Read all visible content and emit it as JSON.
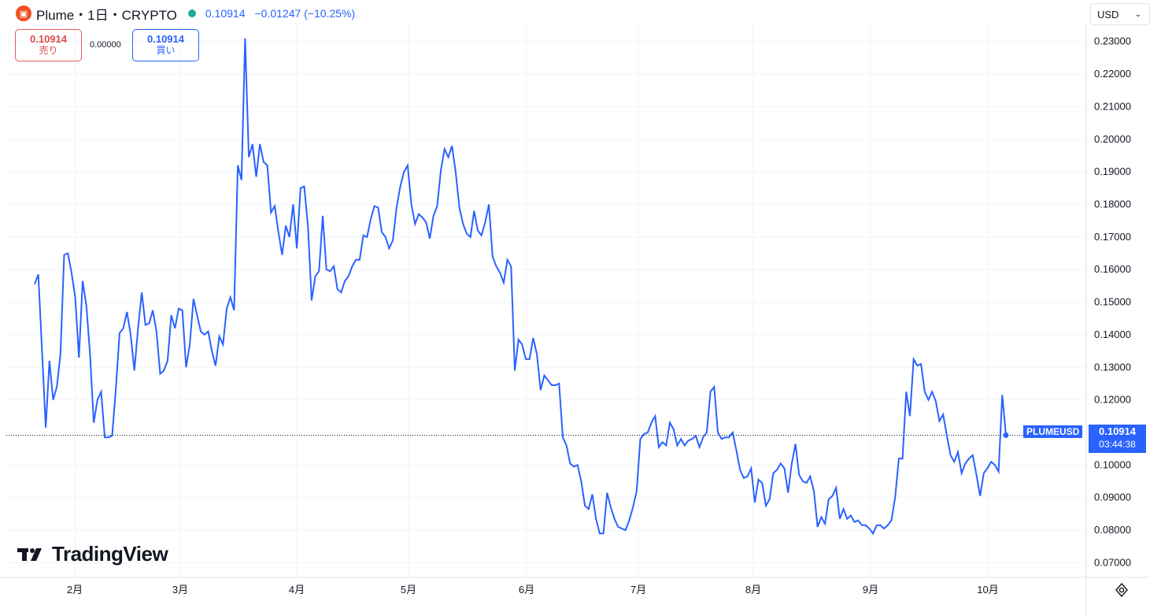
{
  "header": {
    "logo_icon": "plume-logo-icon",
    "symbol_text": "Plume・1日・CRYPTO",
    "market_status_color": "#22ab94",
    "last_price": "0.10914",
    "change": "−0.01247 (−10.25%)"
  },
  "trade": {
    "sell_price": "0.10914",
    "sell_label": "売り",
    "spread": "0.00000",
    "buy_price": "0.10914",
    "buy_label": "買い"
  },
  "currency_selector": {
    "value": "USD"
  },
  "watermark": {
    "text": "TradingView"
  },
  "price_label": {
    "symbol": "PLUMEUSD",
    "price": "0.10914",
    "countdown": "03:44:38"
  },
  "colors": {
    "line": "#2962ff",
    "accent": "#2962ff",
    "down": "#e04848",
    "grid": "#f0f3fa"
  },
  "chart_data": {
    "type": "line",
    "title": "",
    "xlabel": "",
    "ylabel": "",
    "series": [
      {
        "values": [
          0.1555,
          0.1585,
          0.135,
          0.1115,
          0.132,
          0.12,
          0.124,
          0.134,
          0.1645,
          0.165,
          0.159,
          0.1515,
          0.133,
          0.1565,
          0.149,
          0.134,
          0.113,
          0.12,
          0.1225,
          0.1085,
          0.1085,
          0.109,
          0.1235,
          0.1405,
          0.142,
          0.147,
          0.14,
          0.129,
          0.142,
          0.153,
          0.143,
          0.1435,
          0.1475,
          0.141,
          0.128,
          0.129,
          0.132,
          0.146,
          0.142,
          0.148,
          0.1475,
          0.13,
          0.137,
          0.151,
          0.146,
          0.141,
          0.14,
          0.141,
          0.135,
          0.1305,
          0.1395,
          0.137,
          0.148,
          0.1515,
          0.1475,
          0.192,
          0.1875,
          0.231,
          0.1945,
          0.1985,
          0.1885,
          0.1985,
          0.193,
          0.192,
          0.1775,
          0.1795,
          0.1715,
          0.1645,
          0.1735,
          0.17,
          0.18,
          0.1665,
          0.185,
          0.1855,
          0.1735,
          0.1505,
          0.158,
          0.1595,
          0.1765,
          0.16,
          0.1595,
          0.161,
          0.154,
          0.153,
          0.1565,
          0.158,
          0.161,
          0.163,
          0.163,
          0.1705,
          0.17,
          0.1755,
          0.1795,
          0.179,
          0.1715,
          0.17,
          0.1665,
          0.169,
          0.179,
          0.1855,
          0.19,
          0.192,
          0.18,
          0.174,
          0.177,
          0.176,
          0.1745,
          0.1695,
          0.1765,
          0.1795,
          0.1905,
          0.197,
          0.1945,
          0.198,
          0.19,
          0.179,
          0.174,
          0.171,
          0.17,
          0.178,
          0.172,
          0.1705,
          0.1745,
          0.18,
          0.164,
          0.161,
          0.159,
          0.156,
          0.163,
          0.161,
          0.129,
          0.1385,
          0.137,
          0.1325,
          0.1325,
          0.139,
          0.134,
          0.123,
          0.1275,
          0.126,
          0.1245,
          0.1245,
          0.125,
          0.1085,
          0.106,
          0.1005,
          0.0995,
          0.1,
          0.095,
          0.0875,
          0.0865,
          0.091,
          0.0835,
          0.079,
          0.079,
          0.0915,
          0.087,
          0.0835,
          0.081,
          0.0805,
          0.08,
          0.083,
          0.087,
          0.092,
          0.108,
          0.1095,
          0.11,
          0.113,
          0.115,
          0.1055,
          0.107,
          0.106,
          0.113,
          0.111,
          0.106,
          0.108,
          0.106,
          0.1075,
          0.108,
          0.109,
          0.1055,
          0.1085,
          0.11,
          0.1225,
          0.124,
          0.11,
          0.108,
          0.1085,
          0.1085,
          0.11,
          0.1045,
          0.0985,
          0.096,
          0.0965,
          0.099,
          0.0885,
          0.0955,
          0.0945,
          0.0875,
          0.0895,
          0.0975,
          0.0985,
          0.1005,
          0.099,
          0.0915,
          0.1005,
          0.1065,
          0.097,
          0.095,
          0.0945,
          0.0965,
          0.092,
          0.081,
          0.084,
          0.082,
          0.0895,
          0.0905,
          0.093,
          0.0835,
          0.0865,
          0.0835,
          0.0845,
          0.0825,
          0.083,
          0.0815,
          0.0815,
          0.0805,
          0.079,
          0.0815,
          0.0815,
          0.0805,
          0.0815,
          0.083,
          0.09,
          0.102,
          0.102,
          0.1225,
          0.115,
          0.1325,
          0.1305,
          0.131,
          0.1225,
          0.12,
          0.1225,
          0.1195,
          0.1135,
          0.1155,
          0.109,
          0.103,
          0.101,
          0.104,
          0.0975,
          0.1005,
          0.102,
          0.103,
          0.097,
          0.0905,
          0.0975,
          0.099,
          0.101,
          0.1,
          0.098,
          0.1215,
          0.109
        ]
      }
    ],
    "x_labels": [
      "2月",
      "3月",
      "4月",
      "5月",
      "6月",
      "7月",
      "8月",
      "9月",
      "10月"
    ],
    "y_ticks": [
      "0.07000",
      "0.08000",
      "0.09000",
      "0.10000",
      "0.11000",
      "0.12000",
      "0.13000",
      "0.14000",
      "0.15000",
      "0.16000",
      "0.17000",
      "0.18000",
      "0.19000",
      "0.20000",
      "0.21000",
      "0.22000",
      "0.23000"
    ],
    "ylim": [
      0.0655,
      0.2355
    ],
    "grid": true,
    "scale": "linear"
  }
}
